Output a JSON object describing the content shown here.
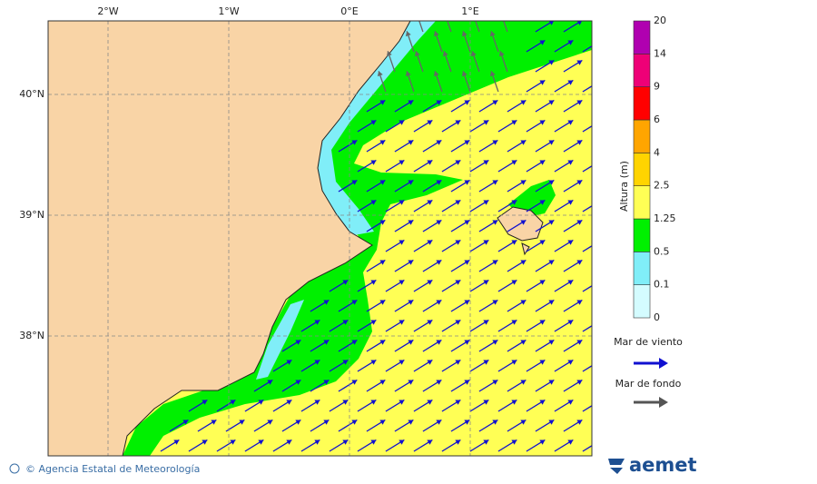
{
  "map": {
    "lon_labels": [
      "2°W",
      "1°W",
      "0°E",
      "1°E"
    ],
    "lat_labels": [
      "40°N",
      "39°N",
      "38°N"
    ]
  },
  "colorbar": {
    "label": "Altura (m)",
    "levels": [
      0,
      0.1,
      0.5,
      1.25,
      2.5,
      4,
      6,
      9,
      14,
      20
    ],
    "colors": [
      "#d4fcff",
      "#80eef8",
      "#00f000",
      "#ffff55",
      "#ffd400",
      "#ffa500",
      "#ff0000",
      "#ee0077",
      "#b000b0"
    ]
  },
  "legend": [
    "Mar de viento",
    "Mar de fondo"
  ],
  "footer": "© Agencia Estatal de Meteorología",
  "logo": "aemet"
}
